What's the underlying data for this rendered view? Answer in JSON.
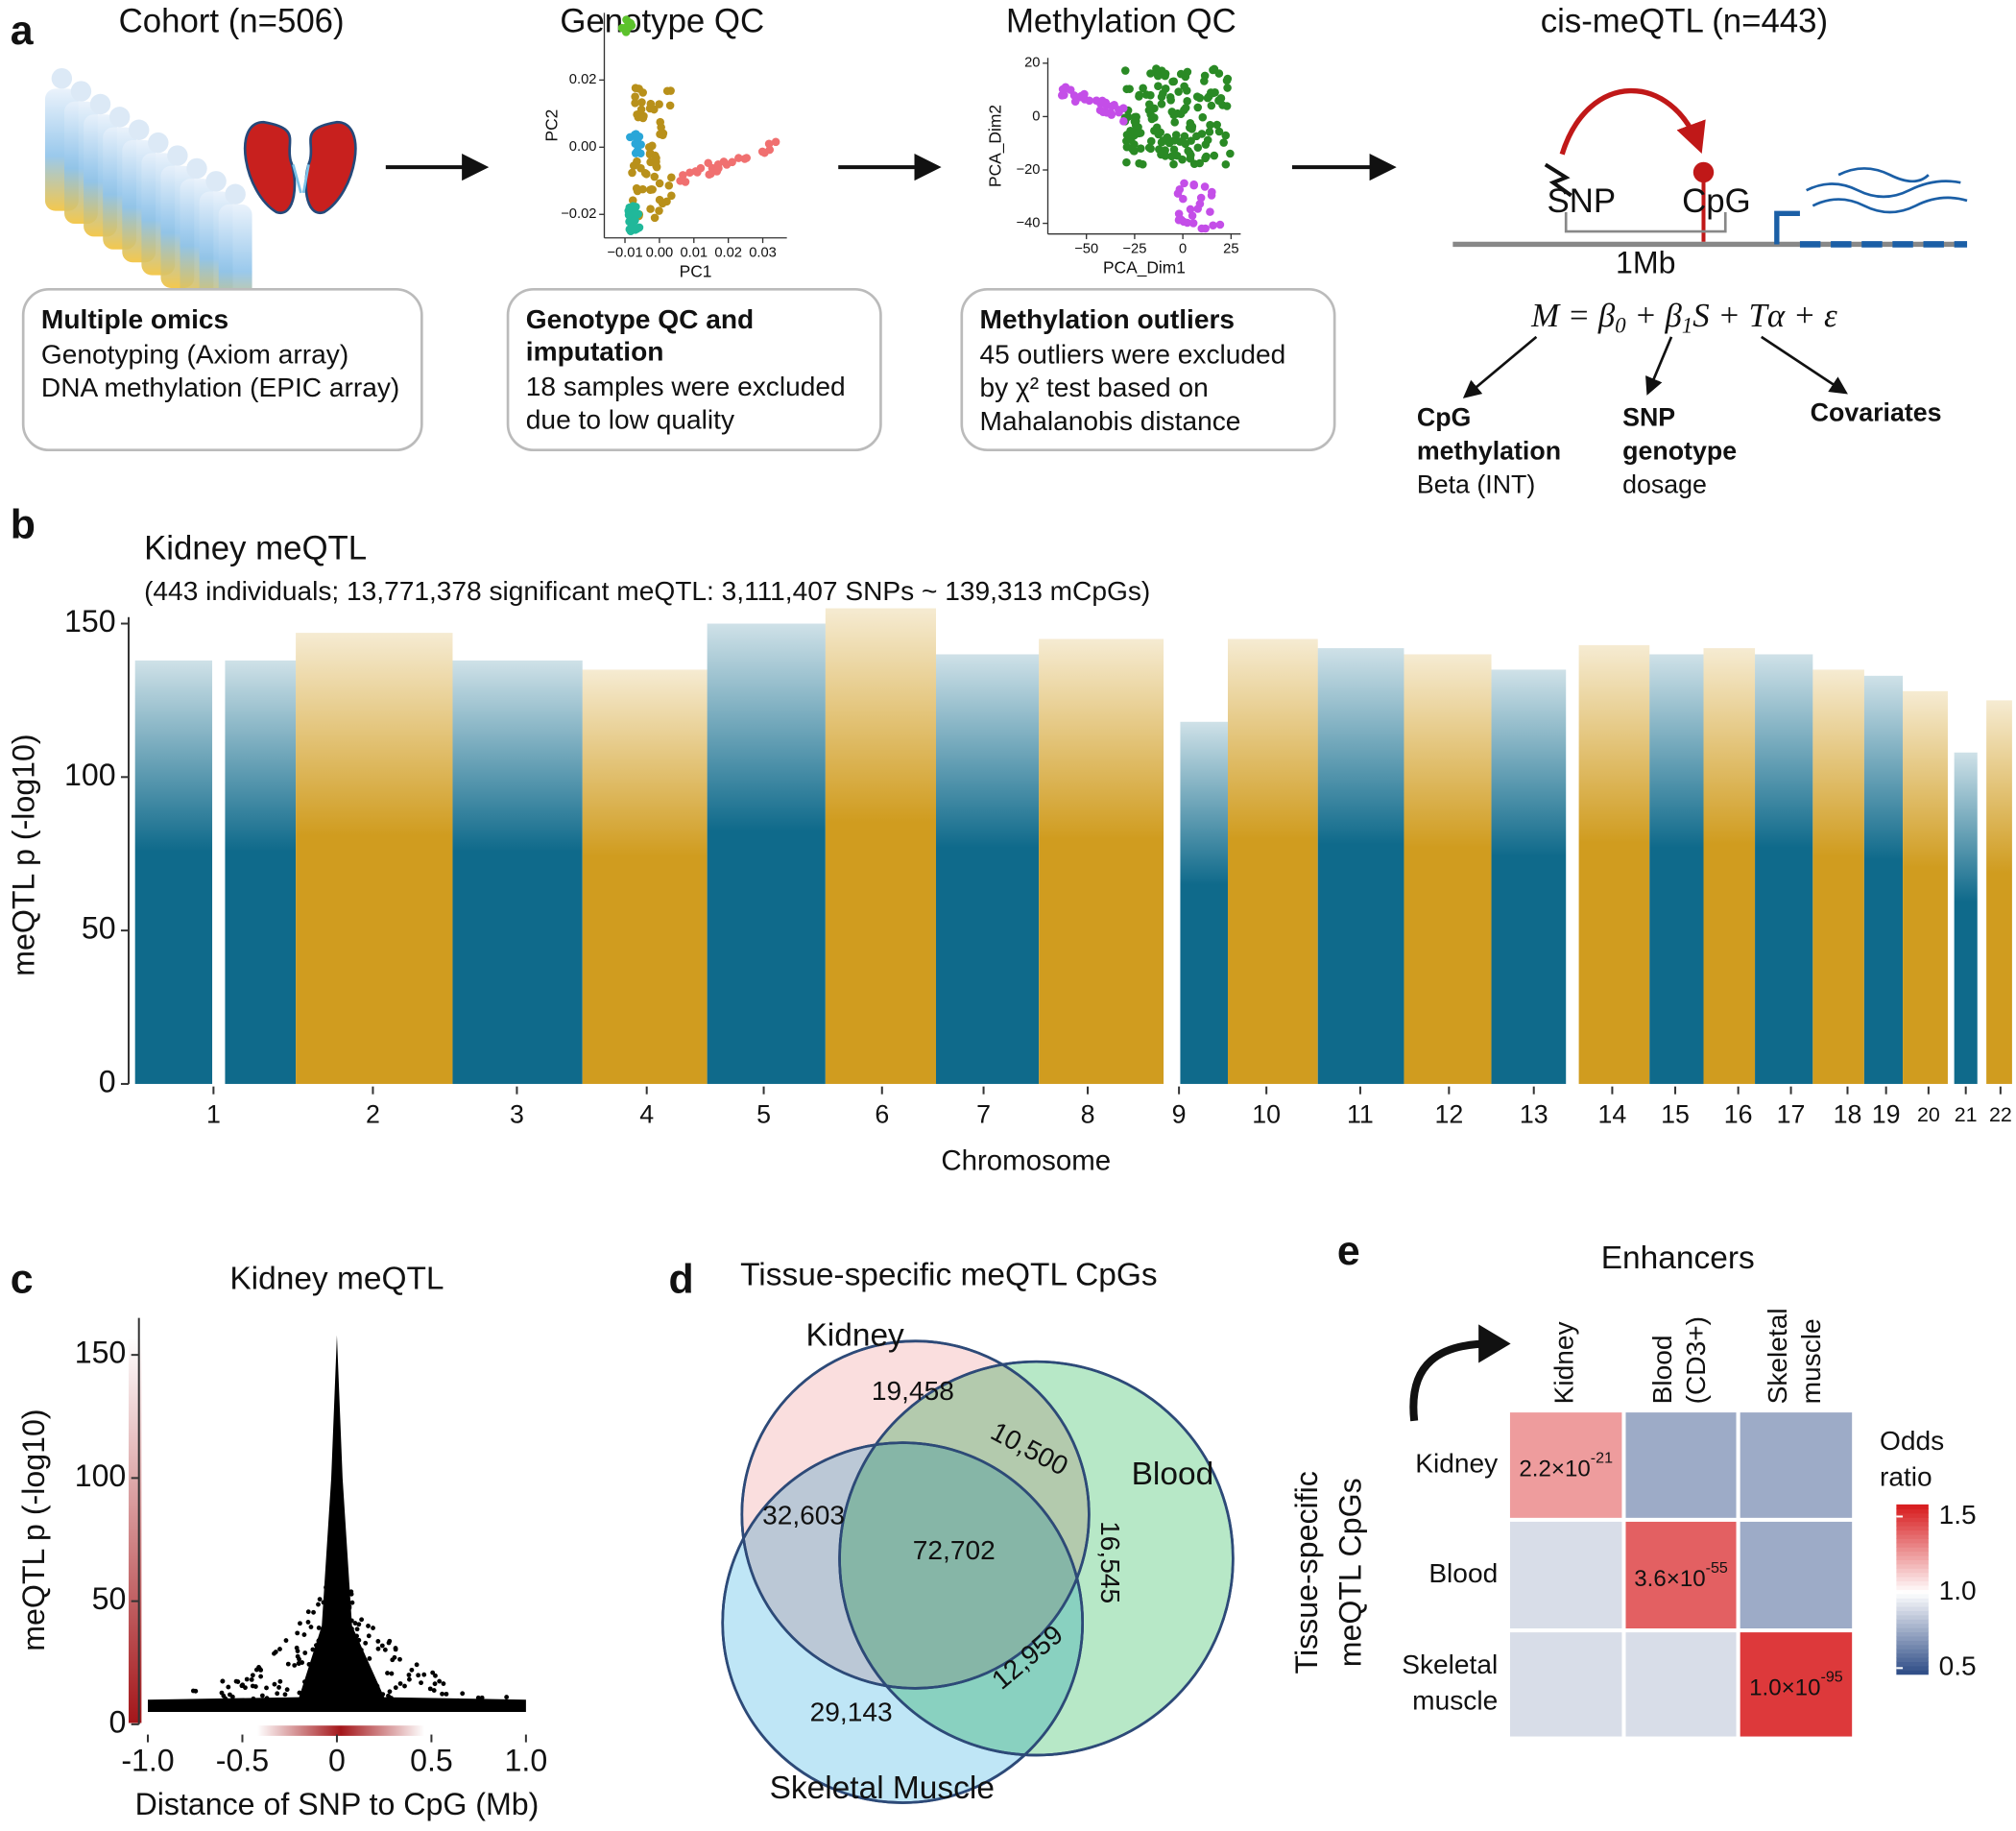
{
  "panel_a": {
    "label": "a",
    "cohort_title": "Cohort (n=506)",
    "geno_title": "Genotype QC",
    "meth_title": "Methylation QC",
    "cis_title": "cis-meQTL (n=443)",
    "box1": {
      "heading": [
        "Multiple omics"
      ],
      "lines": [
        "Genotyping (Axiom array)",
        "DNA methylation (EPIC array)"
      ]
    },
    "box2": {
      "heading": [
        "Genotype QC and",
        "imputation"
      ],
      "lines": [
        "18 samples were excluded",
        "due to low quality"
      ]
    },
    "box3": {
      "heading": [
        "Methylation outliers"
      ],
      "lines": [
        "45 outliers were excluded",
        "by χ² test based on",
        "Mahalanobis distance"
      ]
    },
    "geno_pca": {
      "xlabel": "PC1",
      "ylabel": "PC2",
      "xlim": [
        -0.016,
        0.037
      ],
      "ylim": [
        -0.027,
        0.04
      ],
      "xticks": [
        {
          "value": -0.01,
          "label": "−0.01"
        },
        {
          "value": 0,
          "label": "0.00"
        },
        0.01,
        0.02,
        0.03
      ],
      "yticks": [
        {
          "value": -0.02,
          "label": "−0.02"
        },
        {
          "value": 0,
          "label": "0.00"
        },
        0.02
      ]
    },
    "meth_pca": {
      "xlabel": "PCA_Dim1",
      "ylabel": "PCA_Dim2",
      "xlim": [
        -70,
        30
      ],
      "ylim": [
        -44,
        22
      ],
      "xticks": [
        {
          "value": -50,
          "label": "−50"
        },
        {
          "value": -25,
          "label": "−25"
        },
        0,
        25
      ],
      "yticks": [
        {
          "value": -40,
          "label": "−40"
        },
        {
          "value": -20,
          "label": "−20"
        },
        0,
        20
      ]
    },
    "cis": {
      "snp": "SNP",
      "cpg": "CpG",
      "distance": "1Mb",
      "formula": [
        "M = β",
        "0",
        " + β",
        "1",
        "S + Tα + ε"
      ],
      "term_m": [
        "CpG",
        "methylation",
        "Beta (INT)"
      ],
      "term_s": [
        "SNP",
        "genotype",
        "dosage"
      ],
      "term_t": [
        "Covariates"
      ]
    }
  },
  "chart_data": [
    {
      "type": "manhattan",
      "panel": "b",
      "title": "Kidney meQTL",
      "subtitle": "(443 individuals; 13,771,378 significant meQTL: 3,111,407 SNPs ~ 139,313 mCpGs)",
      "xlabel": "Chromosome",
      "ylabel": "meQTL p (-log10)",
      "categories": [
        "1",
        "2",
        "3",
        "4",
        "5",
        "6",
        "7",
        "8",
        "9",
        "10",
        "11",
        "12",
        "13",
        "14",
        "15",
        "16",
        "17",
        "18",
        "19",
        "20",
        "21",
        "22"
      ],
      "values": [
        138,
        147,
        138,
        135,
        150,
        155,
        140,
        145,
        118,
        145,
        142,
        140,
        135,
        143,
        140,
        142,
        140,
        135,
        133,
        128,
        108,
        125
      ],
      "colors": [
        "#0f6a8b",
        "#d09c1f"
      ],
      "ylim": [
        0,
        152
      ],
      "yticks": [
        0,
        50,
        100,
        150
      ]
    },
    {
      "type": "scatter",
      "panel": "c",
      "title": "Kidney meQTL",
      "xlabel": "Distance of SNP to CpG (Mb)",
      "ylabel": "meQTL p (-log10)",
      "xlim": [
        -1.02,
        1.02
      ],
      "ylim": [
        0,
        165
      ],
      "xticks": [
        {
          "value": -1,
          "label": "-1.0"
        },
        -0.5,
        0,
        0.5,
        {
          "value": 1,
          "label": "1.0"
        }
      ],
      "yticks": [
        0,
        50,
        100,
        150
      ],
      "color": "#000000"
    },
    {
      "type": "venn",
      "panel": "d",
      "title": "Tissue-specific meQTL CpGs",
      "sets": [
        "Kidney",
        "Blood",
        "Skeletal Muscle"
      ],
      "regions": [
        "Kidney only",
        "Kidney & Blood",
        "Kidney & Skeletal Muscle",
        "All",
        "Blood only",
        "Blood & Skeletal Muscle",
        "Skeletal Muscle only"
      ],
      "values": [
        19458,
        10500,
        32603,
        72702,
        16545,
        12959,
        29143
      ],
      "value_labels": [
        "19,458",
        "10,500",
        "32,603",
        "72,702",
        "16,545",
        "12,959",
        "29,143"
      ],
      "colors": [
        "#f8d3d3",
        "#9fe0b4",
        "#a9def3"
      ]
    },
    {
      "type": "heatmap",
      "panel": "e",
      "title": "Enhancers",
      "columns": [
        [
          "Kidney"
        ],
        [
          "Blood",
          "(CD3+)"
        ],
        [
          "Skeletal",
          "muscle"
        ]
      ],
      "rows": [
        [
          "Kidney"
        ],
        [
          "Blood"
        ],
        [
          "Skeletal",
          "muscle"
        ]
      ],
      "ylabel": [
        "Tissue-specific",
        "meQTL CpGs"
      ],
      "values": [
        [
          1.25,
          0.75,
          0.75
        ],
        [
          0.9,
          1.4,
          0.75
        ],
        [
          0.9,
          0.9,
          1.5
        ]
      ],
      "cell_labels": [
        [
          [
            "2.2×10",
            "-21"
          ],
          null,
          null
        ],
        [
          null,
          [
            "3.6×10",
            "-55"
          ],
          null
        ],
        [
          null,
          null,
          [
            "1.0×10",
            "-95"
          ]
        ]
      ],
      "legend_title": [
        "Odds",
        "ratio"
      ],
      "colorlim": [
        0.46,
        1.58
      ],
      "colorticks": [
        1.5,
        {
          "value": 1,
          "label": "1.0"
        },
        0.5
      ],
      "low_color": "#2c4a85",
      "mid_color": "#ffffff",
      "high_color": "#d7191c"
    }
  ]
}
